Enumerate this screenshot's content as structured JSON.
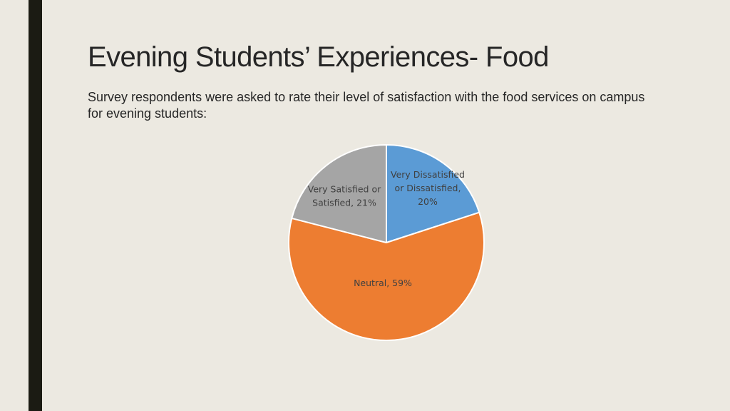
{
  "slide": {
    "title": "Evening Students’ Experiences- Food",
    "body": "Survey respondents were asked to rate their level of satisfaction with the food services on campus for evening students:"
  },
  "colors": {
    "background": "#ECE9E1",
    "accent_bar": "#1B1B13"
  },
  "chart_data": {
    "type": "pie",
    "title": "",
    "slices": [
      {
        "label": "Very Dissatisfied or Dissatisfied",
        "value": 20,
        "color": "#5B9BD5",
        "label_lines": [
          "Very Dissatisfied",
          "or Dissatisfied,",
          "20%"
        ]
      },
      {
        "label": "Neutral",
        "value": 59,
        "color": "#ED7D31",
        "label_lines": [
          "Neutral, 59%"
        ]
      },
      {
        "label": "Very Satisfied or Satisfied",
        "value": 21,
        "color": "#A5A5A5",
        "label_lines": [
          "Very Satisfied or",
          "Satisfied, 21%"
        ]
      }
    ],
    "start_angle": "12 o'clock",
    "direction": "clockwise",
    "legend": "none",
    "data_labels": "category name and percentage"
  }
}
